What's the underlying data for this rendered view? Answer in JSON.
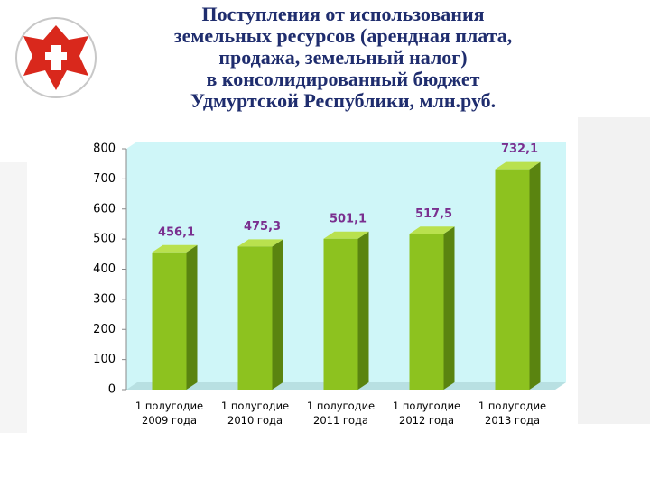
{
  "chart_data": {
    "type": "bar3d",
    "title": "Поступления от использования\nземельных ресурсов (арендная плата,\nпродажа, земельный налог)\nв консолидированный бюджет\nУдмуртской Республики, млн.руб.",
    "categories": [
      "1 полугодие\n2009 года",
      "1 полугодие\n2010 года",
      "1 полугодие\n2011 года",
      "1 полугодие\n2012 года",
      "1 полугодие\n2013 года"
    ],
    "values": [
      456.1,
      475.3,
      501.1,
      517.5,
      732.1
    ],
    "value_labels": [
      "456,1",
      "475,3",
      "501,1",
      "517,5",
      "732,1"
    ],
    "color": "#8dc21f",
    "ylim": [
      0,
      800
    ],
    "yticks": [
      0,
      100,
      200,
      300,
      400,
      500,
      600,
      700,
      800
    ]
  }
}
